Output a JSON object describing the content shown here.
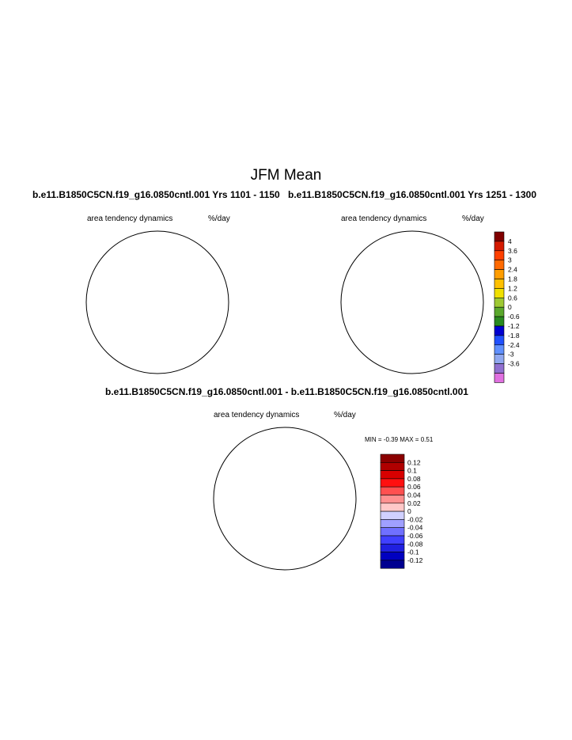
{
  "figure": {
    "title": "JFM Mean",
    "panel_left_title": "b.e11.B1850C5CN.f19_g16.0850cntl.001  Yrs 1101 - 1150",
    "panel_right_title": "b.e11.B1850C5CN.f19_g16.0850cntl.001  Yrs 1251 - 1300",
    "diff_title": "b.e11.B1850C5CN.f19_g16.0850cntl.001 - b.e11.B1850C5CN.f19_g16.0850cntl.001"
  },
  "panels": {
    "left": {
      "variable": "area tendency dynamics",
      "units": "%/day"
    },
    "right": {
      "variable": "area tendency dynamics",
      "units": "%/day"
    },
    "diff": {
      "variable": "area tendency dynamics",
      "units": "%/day",
      "stats": "MIN =  -0.39 MAX =    0.51"
    }
  },
  "colorbars": {
    "mean": {
      "colors": [
        "#800000",
        "#d41a00",
        "#ff4000",
        "#ff6a00",
        "#ff9d00",
        "#ffc000",
        "#f0e000",
        "#9ec933",
        "#5aa82c",
        "#2a8a20",
        "#0000d0",
        "#2050ff",
        "#6090ff",
        "#90a8f0",
        "#9070d0",
        "#e070e0"
      ],
      "labels": [
        "4",
        "3.6",
        "3",
        "2.4",
        "1.8",
        "1.2",
        "0.6",
        "0",
        "-0.6",
        "-1.2",
        "-1.8",
        "-2.4",
        "-3",
        "-3.6"
      ]
    },
    "diff": {
      "colors": [
        "#8b0000",
        "#b00000",
        "#d80000",
        "#ff1010",
        "#ff5050",
        "#ff9090",
        "#ffc8c8",
        "#d0d0ff",
        "#a0a0ff",
        "#7070ff",
        "#4040ff",
        "#2020e0",
        "#0000c0",
        "#000090"
      ],
      "labels": [
        "0.12",
        "0.1",
        "0.08",
        "0.06",
        "0.04",
        "0.02",
        "0",
        "-0.02",
        "-0.04",
        "-0.06",
        "-0.08",
        "-0.1",
        "-0.12"
      ]
    }
  }
}
